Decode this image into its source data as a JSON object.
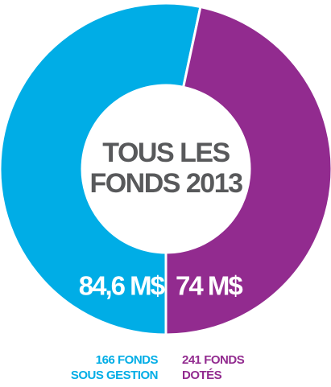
{
  "chart_data": {
    "type": "donut",
    "title_lines": [
      "TOUS LES",
      "FONDS 2013"
    ],
    "categories": [
      [
        "166 FONDS",
        "SOUS GESTION"
      ],
      [
        "241 FONDS",
        "DOTÉS"
      ]
    ],
    "values": [
      84.6,
      74
    ],
    "value_labels": [
      "84,6 M$",
      "74 M$"
    ],
    "colors": [
      "#00ade6",
      "#922b8f"
    ]
  }
}
